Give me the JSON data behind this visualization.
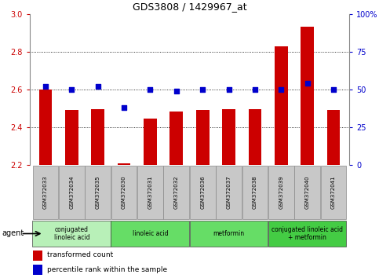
{
  "title": "GDS3808 / 1429967_at",
  "samples": [
    "GSM372033",
    "GSM372034",
    "GSM372035",
    "GSM372030",
    "GSM372031",
    "GSM372032",
    "GSM372036",
    "GSM372037",
    "GSM372038",
    "GSM372039",
    "GSM372040",
    "GSM372041"
  ],
  "bar_values": [
    2.6,
    2.49,
    2.495,
    2.21,
    2.445,
    2.485,
    2.49,
    2.495,
    2.495,
    2.83,
    2.935,
    2.49
  ],
  "dot_values": [
    52,
    50,
    52,
    38,
    50,
    49,
    50,
    50,
    50,
    50,
    54,
    50
  ],
  "ylim_left": [
    2.2,
    3.0
  ],
  "ylim_right": [
    0,
    100
  ],
  "yticks_left": [
    2.2,
    2.4,
    2.6,
    2.8,
    3.0
  ],
  "yticks_right": [
    0,
    25,
    50,
    75,
    100
  ],
  "ytick_labels_right": [
    "0",
    "25",
    "50",
    "75",
    "100%"
  ],
  "bar_color": "#cc0000",
  "dot_color": "#0000cc",
  "grid_color": "#000000",
  "background_color": "#ffffff",
  "agent_groups": [
    {
      "label": "conjugated\nlinoleic acid",
      "start": 0,
      "end": 3,
      "color": "#b8f0b8"
    },
    {
      "label": "linoleic acid",
      "start": 3,
      "end": 6,
      "color": "#66dd66"
    },
    {
      "label": "metformin",
      "start": 6,
      "end": 9,
      "color": "#66dd66"
    },
    {
      "label": "conjugated linoleic acid\n+ metformin",
      "start": 9,
      "end": 12,
      "color": "#44cc44"
    }
  ],
  "legend_items": [
    {
      "label": "transformed count",
      "color": "#cc0000"
    },
    {
      "label": "percentile rank within the sample",
      "color": "#0000cc"
    }
  ],
  "bar_width": 0.5,
  "grid_yticks": [
    2.4,
    2.6,
    2.8
  ],
  "sample_box_color": "#c8c8c8",
  "agent_label": "agent"
}
